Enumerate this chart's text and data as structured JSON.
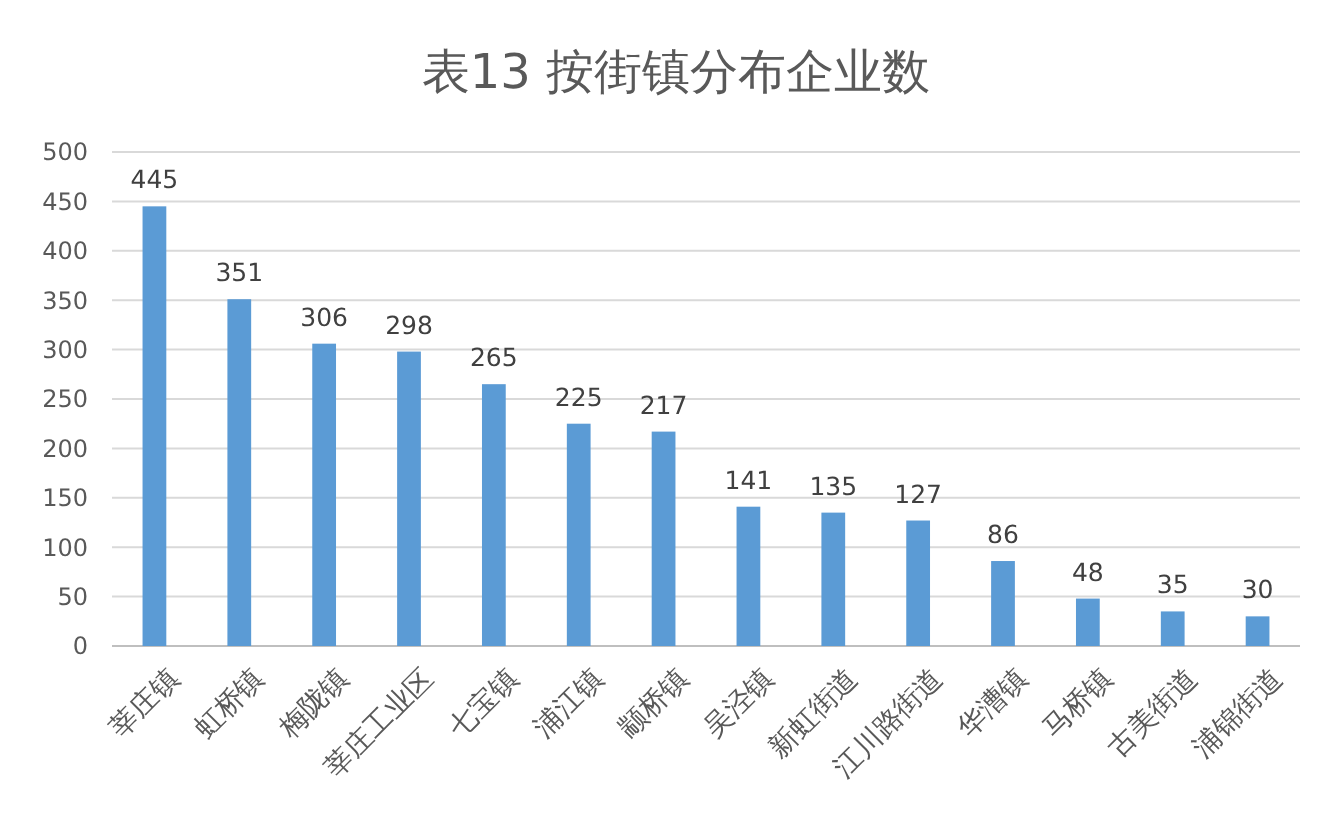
{
  "chart_data": {
    "type": "bar",
    "title": "表13 按街镇分布企业数",
    "categories": [
      "莘庄镇",
      "虹桥镇",
      "梅陇镇",
      "莘庄工业区",
      "七宝镇",
      "浦江镇",
      "颛桥镇",
      "吴泾镇",
      "新虹街道",
      "江川路街道",
      "华漕镇",
      "马桥镇",
      "古美街道",
      "浦锦街道"
    ],
    "values": [
      445,
      351,
      306,
      298,
      265,
      225,
      217,
      141,
      135,
      127,
      86,
      48,
      35,
      30
    ],
    "color": "#5b9bd5",
    "ylim": [
      0,
      500
    ],
    "yticks": [
      0,
      50,
      100,
      150,
      200,
      250,
      300,
      350,
      400,
      450,
      500
    ],
    "grid": "y",
    "data_labels": true
  }
}
